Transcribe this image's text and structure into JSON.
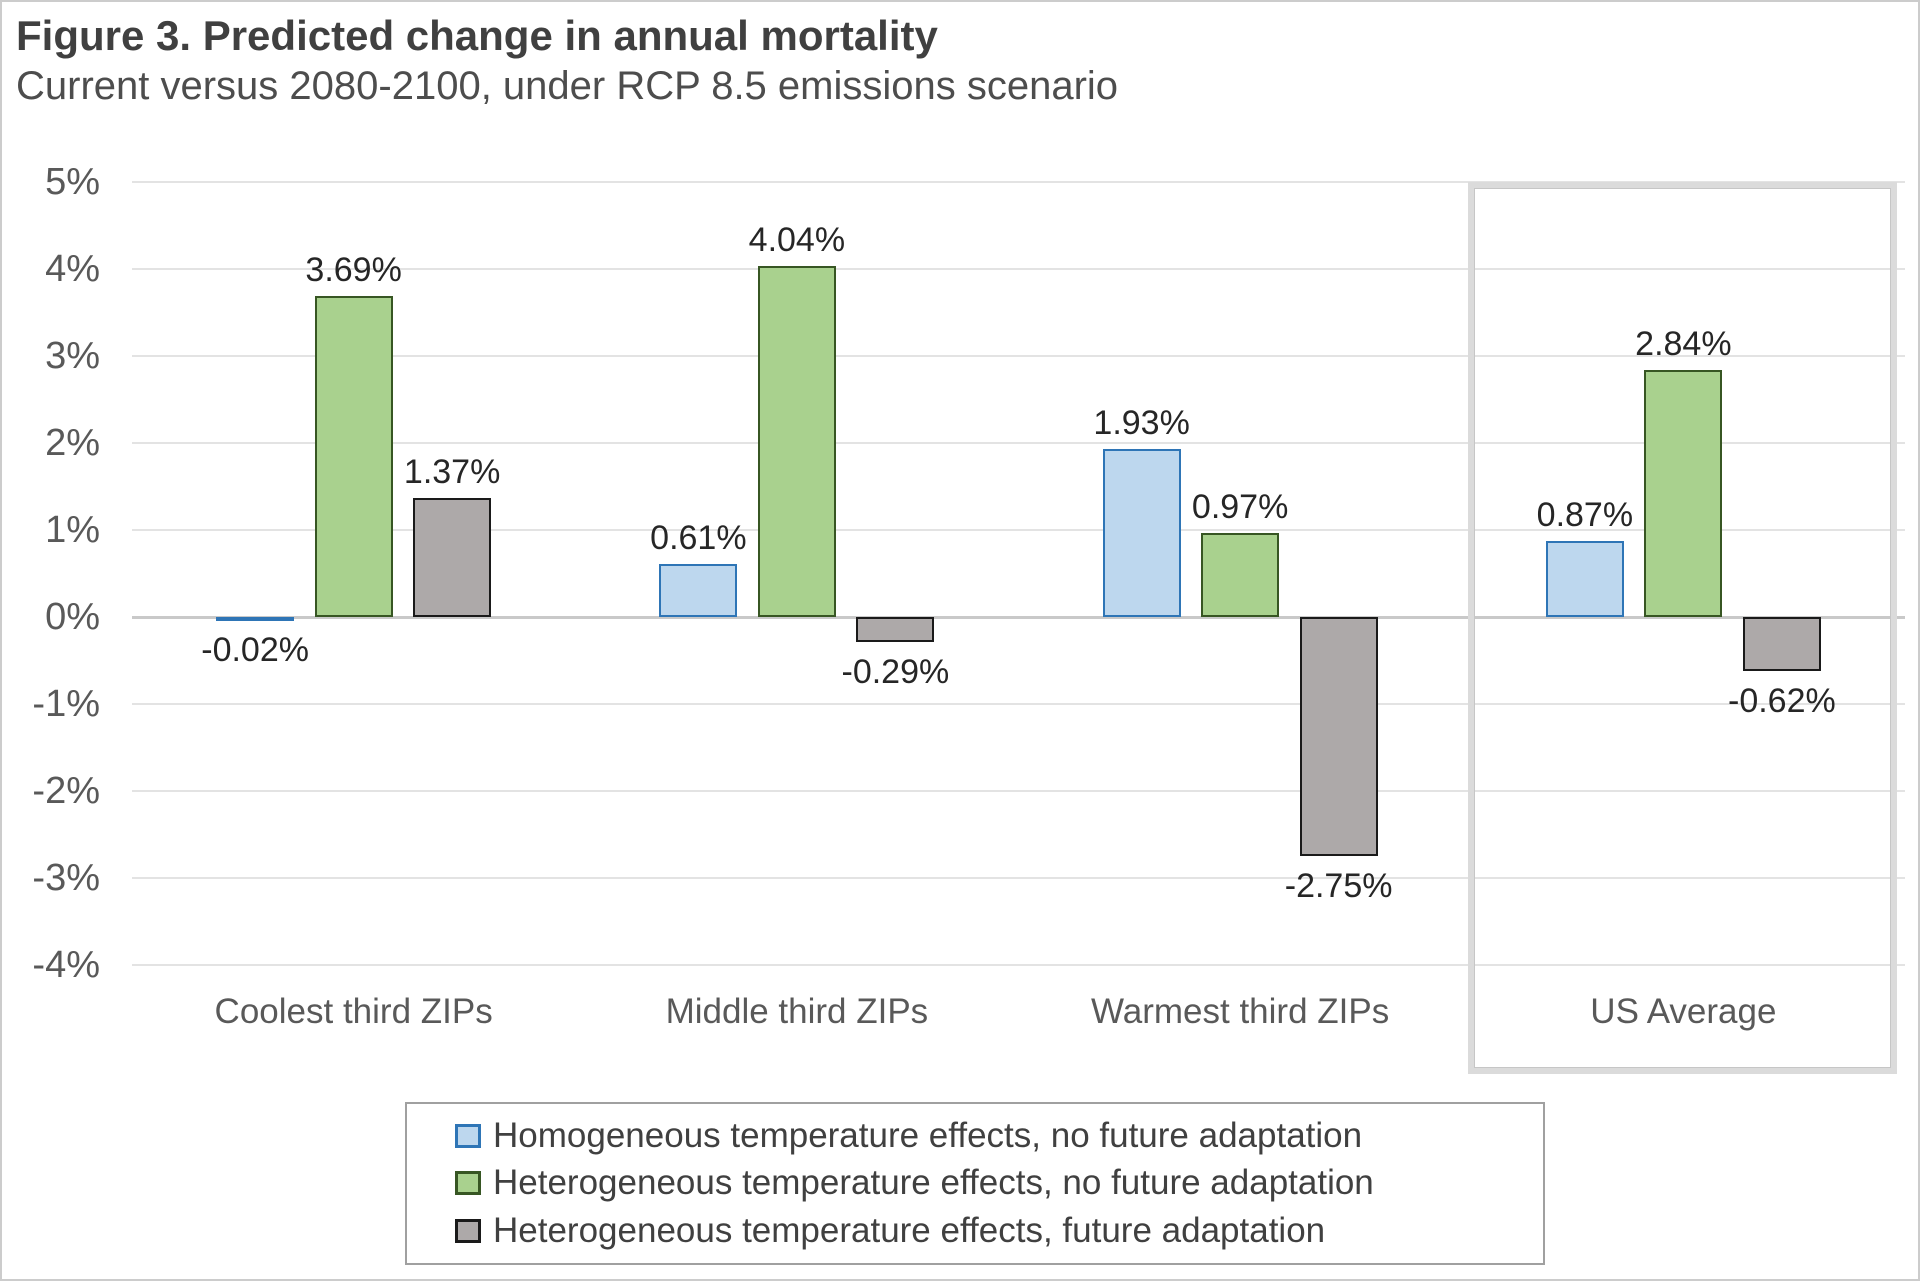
{
  "chart_data": {
    "type": "bar",
    "title": "Figure 3. Predicted change in annual mortality",
    "subtitle": "Current versus 2080-2100, under RCP 8.5 emissions scenario",
    "categories": [
      "Coolest third ZIPs",
      "Middle third ZIPs",
      "Warmest third ZIPs",
      "US Average"
    ],
    "series": [
      {
        "name": "Homogeneous temperature effects, no future adaptation",
        "fill": "#BDD7EE",
        "border": "#2E75B6",
        "values": [
          -0.02,
          0.61,
          1.93,
          0.87
        ],
        "data_labels": [
          "-0.02%",
          "0.61%",
          "1.93%",
          "0.87%"
        ]
      },
      {
        "name": "Heterogeneous temperature effects, no future adaptation",
        "fill": "#A9D18E",
        "border": "#375623",
        "values": [
          3.69,
          4.04,
          0.97,
          2.84
        ],
        "data_labels": [
          "3.69%",
          "4.04%",
          "0.97%",
          "2.84%"
        ]
      },
      {
        "name": "Heterogeneous temperature effects, future adaptation",
        "fill": "#ADA9A9",
        "border": "#1A1A1A",
        "values": [
          1.37,
          -0.29,
          -2.75,
          -0.62
        ],
        "data_labels": [
          "1.37%",
          "-0.29%",
          "-2.75%",
          "-0.62%"
        ]
      }
    ],
    "y_ticks": [
      "5%",
      "4%",
      "3%",
      "2%",
      "1%",
      "0%",
      "-1%",
      "-2%",
      "-3%",
      "-4%"
    ],
    "ylim": [
      -4,
      5
    ],
    "grid": true,
    "legend_position": "bottom",
    "highlight_box_group": "US Average"
  }
}
